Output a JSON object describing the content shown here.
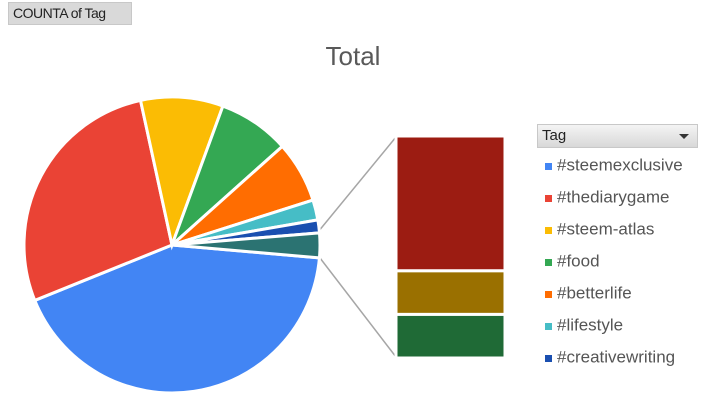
{
  "button": {
    "label": "COUNTA of Tag"
  },
  "chart_data": {
    "type": "pie-of-bar",
    "title": "Total",
    "legend_title": "Tag",
    "categories": [
      "#steemexclusive",
      "#thediarygame",
      "#steem-atlas",
      "#food",
      "#betterlife",
      "#lifestyle",
      "#creativewriting",
      null
    ],
    "values": [
      42.5,
      27.7,
      9,
      7.8,
      6.7,
      2.2,
      1.4,
      2.7
    ],
    "colors": [
      "#4285f4",
      "#ea4335",
      "#fbbc04",
      "#34a853",
      "#ff6d01",
      "#46bdc6",
      "#1a4fb0",
      "#2b7372"
    ],
    "bar_values": [
      1.64,
      0.53,
      0.53
    ],
    "bar_colors": [
      "#9c1c12",
      "#9a7000",
      "#1f6a36"
    ],
    "legend_position": "right"
  }
}
